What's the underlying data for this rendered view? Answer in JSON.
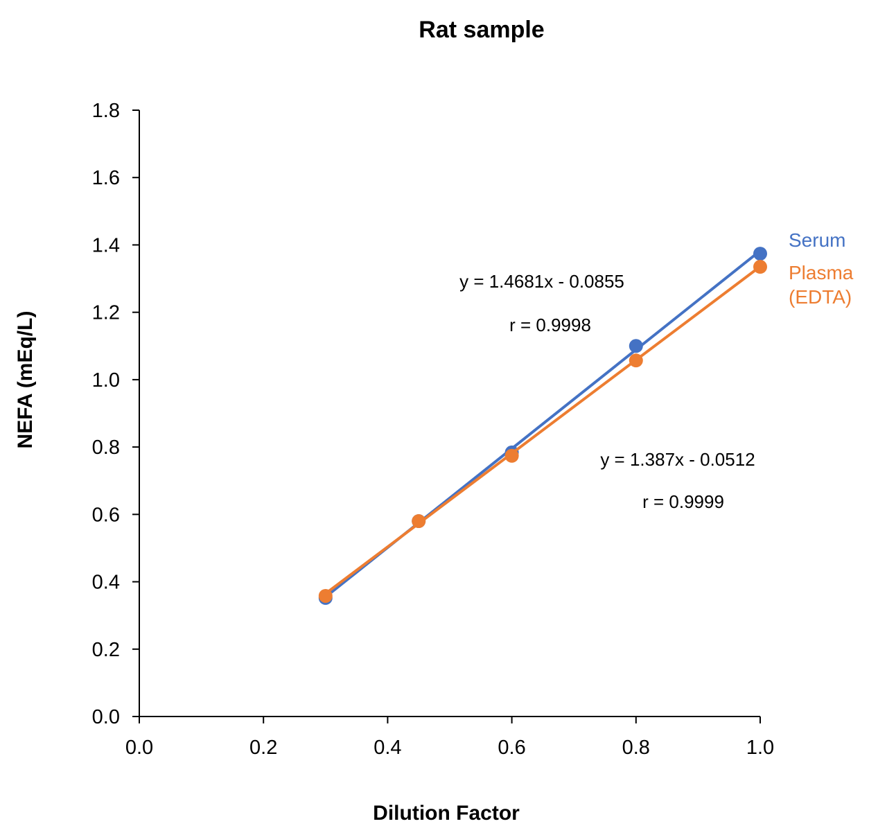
{
  "chart_data": {
    "type": "scatter",
    "title": "Rat sample",
    "xlabel": "Dilution Factor",
    "ylabel": "NEFA (mEq/L)",
    "xlim": [
      0,
      1.0
    ],
    "ylim": [
      0,
      1.8
    ],
    "xticks": [
      "0.0",
      "0.2",
      "0.4",
      "0.6",
      "0.8",
      "1.0"
    ],
    "yticks": [
      "0.0",
      "0.2",
      "0.4",
      "0.6",
      "0.8",
      "1.0",
      "1.2",
      "1.4",
      "1.6",
      "1.8"
    ],
    "grid": false,
    "legend": "right (inline labels)",
    "series": [
      {
        "name": "Serum",
        "color": "#4472C4",
        "x": [
          0.3,
          0.45,
          0.6,
          0.8,
          1.0
        ],
        "y": [
          0.352,
          0.58,
          0.784,
          1.1,
          1.374
        ],
        "trendline": {
          "slope": 1.4681,
          "intercept": -0.0855
        },
        "equation": "y = 1.4681x - 0.0855",
        "r": "r = 0.9998"
      },
      {
        "name": "Plasma (EDTA)",
        "label_lines": [
          "Plasma",
          "(EDTA)"
        ],
        "color": "#ED7D31",
        "x": [
          0.3,
          0.45,
          0.6,
          0.8,
          1.0
        ],
        "y": [
          0.358,
          0.58,
          0.774,
          1.057,
          1.335
        ],
        "trendline": {
          "slope": 1.387,
          "intercept": -0.0512
        },
        "equation": "y = 1.387x - 0.0512",
        "r": "r = 0.9999"
      }
    ]
  }
}
